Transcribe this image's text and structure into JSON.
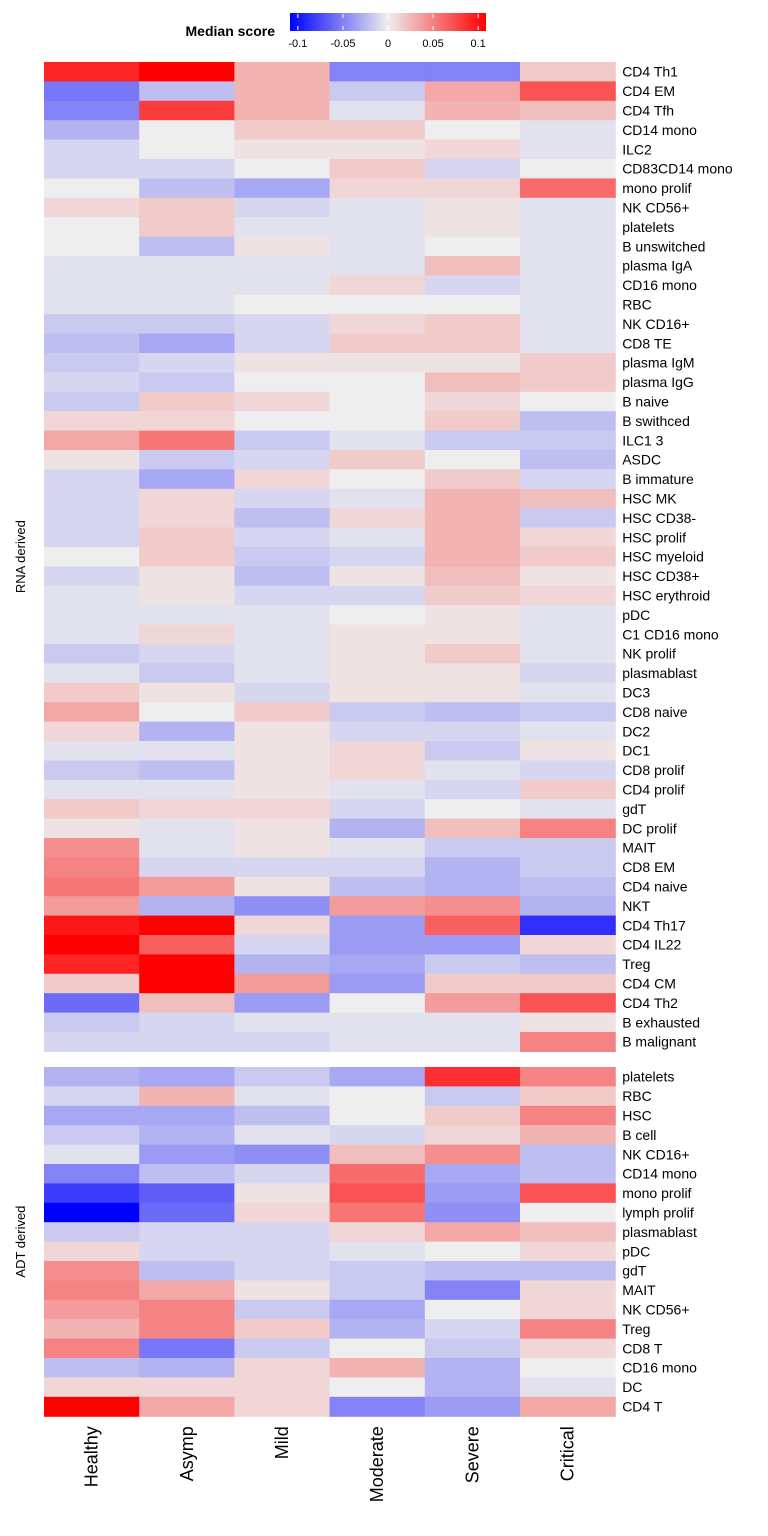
{
  "chart_data": {
    "type": "heatmap",
    "legend": {
      "title": "Median score",
      "ticks": [
        "-0.1",
        "-0.05",
        "0",
        "0.05",
        "0.1"
      ],
      "tick_values": [
        -0.1,
        -0.05,
        0,
        0.05,
        0.1
      ],
      "color_low": "#0000ff",
      "color_mid": "#eeeeee",
      "color_high": "#ff0000",
      "placement": "top"
    },
    "columns": [
      "Healthy",
      "Asymp",
      "Mild",
      "Moderate",
      "Severe",
      "Critical"
    ],
    "groups": [
      {
        "label": "RNA derived",
        "rows": [
          {
            "name": "CD4 Th1",
            "values": [
              0.085,
              0.12,
              0.025,
              -0.045,
              -0.045,
              0.015
            ]
          },
          {
            "name": "CD4 EM",
            "values": [
              -0.05,
              -0.02,
              0.025,
              -0.015,
              0.03,
              0.065
            ]
          },
          {
            "name": "CD4 Tfh",
            "values": [
              -0.045,
              0.075,
              0.025,
              -0.005,
              0.025,
              0.02
            ]
          },
          {
            "name": "CD14 mono",
            "values": [
              -0.025,
              0.0,
              0.015,
              0.015,
              0.0,
              -0.005
            ]
          },
          {
            "name": "ILC2",
            "values": [
              -0.01,
              0.0,
              0.005,
              0.005,
              0.01,
              -0.005
            ]
          },
          {
            "name": "CD83CD14 mono",
            "values": [
              -0.01,
              -0.01,
              0.0,
              0.015,
              -0.01,
              0.0
            ]
          },
          {
            "name": "mono prolif",
            "values": [
              0.0,
              -0.02,
              -0.03,
              0.01,
              0.01,
              0.055
            ]
          },
          {
            "name": "NK CD56+",
            "values": [
              0.01,
              0.015,
              -0.01,
              -0.005,
              0.005,
              -0.005
            ]
          },
          {
            "name": "platelets",
            "values": [
              0.0,
              0.015,
              -0.005,
              -0.005,
              0.005,
              -0.005
            ]
          },
          {
            "name": "B unswitched",
            "values": [
              0.0,
              -0.02,
              0.005,
              -0.005,
              0.0,
              -0.005
            ]
          },
          {
            "name": "plasma IgA",
            "values": [
              -0.005,
              -0.005,
              -0.005,
              -0.005,
              0.02,
              -0.005
            ]
          },
          {
            "name": "CD16 mono",
            "values": [
              -0.005,
              -0.005,
              -0.005,
              0.01,
              -0.01,
              -0.005
            ]
          },
          {
            "name": "RBC",
            "values": [
              -0.005,
              -0.005,
              0.0,
              0.0,
              0.0,
              -0.005
            ]
          },
          {
            "name": "NK CD16+",
            "values": [
              -0.015,
              -0.015,
              -0.01,
              0.01,
              0.015,
              -0.005
            ]
          },
          {
            "name": "CD8 TE",
            "values": [
              -0.02,
              -0.03,
              -0.01,
              0.015,
              0.015,
              -0.005
            ]
          },
          {
            "name": "plasma IgM",
            "values": [
              -0.015,
              -0.01,
              0.005,
              0.005,
              0.005,
              0.015
            ]
          },
          {
            "name": "plasma IgG",
            "values": [
              -0.01,
              -0.015,
              0.0,
              0.0,
              0.02,
              0.015
            ]
          },
          {
            "name": "B naive",
            "values": [
              -0.015,
              0.015,
              0.01,
              0.0,
              0.01,
              0.0
            ]
          },
          {
            "name": "B swithced",
            "values": [
              0.01,
              0.01,
              0.0,
              0.0,
              0.015,
              -0.02
            ]
          },
          {
            "name": "ILC1 3",
            "values": [
              0.03,
              0.05,
              -0.015,
              -0.005,
              -0.015,
              -0.015
            ]
          },
          {
            "name": "ASDC",
            "values": [
              0.005,
              -0.015,
              -0.01,
              0.015,
              0.0,
              -0.02
            ]
          },
          {
            "name": "B immature",
            "values": [
              -0.01,
              -0.03,
              0.01,
              0.0,
              0.015,
              -0.01
            ]
          },
          {
            "name": "HSC MK",
            "values": [
              -0.01,
              0.01,
              -0.01,
              -0.005,
              0.025,
              0.02
            ]
          },
          {
            "name": "HSC CD38-",
            "values": [
              -0.01,
              0.01,
              -0.02,
              0.01,
              0.025,
              -0.015
            ]
          },
          {
            "name": "HSC prolif",
            "values": [
              -0.01,
              0.015,
              -0.01,
              -0.005,
              0.025,
              0.01
            ]
          },
          {
            "name": "HSC myeloid",
            "values": [
              0.0,
              0.015,
              -0.015,
              -0.01,
              0.025,
              0.015
            ]
          },
          {
            "name": "HSC CD38+",
            "values": [
              -0.01,
              0.005,
              -0.02,
              0.005,
              0.02,
              0.005
            ]
          },
          {
            "name": "HSC erythroid",
            "values": [
              -0.005,
              0.005,
              -0.01,
              -0.01,
              0.015,
              0.01
            ]
          },
          {
            "name": "pDC",
            "values": [
              -0.005,
              -0.005,
              -0.005,
              0.0,
              0.005,
              -0.005
            ]
          },
          {
            "name": "C1 CD16 mono",
            "values": [
              -0.005,
              0.01,
              -0.005,
              0.005,
              0.005,
              -0.005
            ]
          },
          {
            "name": "NK prolif",
            "values": [
              -0.015,
              -0.01,
              -0.005,
              0.005,
              0.015,
              -0.005
            ]
          },
          {
            "name": "plasmablast",
            "values": [
              -0.005,
              -0.015,
              -0.005,
              0.005,
              0.005,
              -0.01
            ]
          },
          {
            "name": "DC3",
            "values": [
              0.015,
              0.005,
              -0.01,
              0.005,
              0.005,
              -0.005
            ]
          },
          {
            "name": "CD8 naive",
            "values": [
              0.03,
              0.0,
              0.015,
              -0.015,
              -0.02,
              -0.015
            ]
          },
          {
            "name": "DC2",
            "values": [
              0.01,
              -0.025,
              0.005,
              -0.01,
              -0.01,
              -0.005
            ]
          },
          {
            "name": "DC1",
            "values": [
              -0.005,
              -0.005,
              0.005,
              0.01,
              -0.015,
              0.005
            ]
          },
          {
            "name": "CD8 prolif",
            "values": [
              -0.015,
              -0.02,
              0.005,
              0.01,
              -0.005,
              -0.01
            ]
          },
          {
            "name": "CD4 prolif",
            "values": [
              -0.005,
              -0.005,
              0.005,
              -0.005,
              -0.01,
              0.015
            ]
          },
          {
            "name": "gdT",
            "values": [
              0.015,
              0.01,
              0.01,
              -0.01,
              0.0,
              -0.005
            ]
          },
          {
            "name": "DC prolif",
            "values": [
              0.005,
              -0.005,
              0.005,
              -0.025,
              0.02,
              0.045
            ]
          },
          {
            "name": "MAIT",
            "values": [
              0.04,
              -0.005,
              0.005,
              -0.005,
              -0.015,
              -0.015
            ]
          },
          {
            "name": "CD8 EM",
            "values": [
              0.045,
              -0.01,
              -0.01,
              -0.01,
              -0.025,
              -0.015
            ]
          },
          {
            "name": "CD4 naive",
            "values": [
              0.05,
              0.035,
              0.005,
              -0.02,
              -0.025,
              -0.02
            ]
          },
          {
            "name": "NKT",
            "values": [
              0.035,
              -0.025,
              -0.04,
              0.035,
              0.04,
              -0.025
            ]
          },
          {
            "name": "CD4 Th17",
            "values": [
              0.09,
              0.12,
              0.01,
              -0.035,
              0.06,
              -0.08
            ]
          },
          {
            "name": "CD4 IL22",
            "values": [
              0.105,
              0.06,
              -0.01,
              -0.035,
              -0.035,
              0.01
            ]
          },
          {
            "name": "Treg",
            "values": [
              0.085,
              0.12,
              -0.025,
              -0.03,
              -0.015,
              -0.02
            ]
          },
          {
            "name": "CD4 CM",
            "values": [
              0.015,
              0.12,
              0.035,
              -0.035,
              0.015,
              0.015
            ]
          },
          {
            "name": "CD4 Th2",
            "values": [
              -0.055,
              0.02,
              -0.035,
              0.0,
              0.035,
              0.065
            ]
          },
          {
            "name": "B exhausted",
            "values": [
              -0.015,
              -0.01,
              -0.005,
              -0.005,
              -0.005,
              0.005
            ]
          },
          {
            "name": "B malignant",
            "values": [
              -0.01,
              -0.01,
              -0.01,
              -0.005,
              -0.005,
              0.045
            ]
          }
        ]
      },
      {
        "label": "ADT derived",
        "rows": [
          {
            "name": "platelets",
            "values": [
              -0.025,
              -0.03,
              -0.015,
              -0.03,
              0.08,
              0.045
            ]
          },
          {
            "name": "RBC",
            "values": [
              -0.01,
              0.025,
              -0.005,
              0.0,
              -0.015,
              0.015
            ]
          },
          {
            "name": "HSC",
            "values": [
              -0.03,
              -0.03,
              -0.02,
              0.0,
              0.015,
              0.045
            ]
          },
          {
            "name": "B cell",
            "values": [
              -0.015,
              -0.025,
              -0.005,
              -0.01,
              0.01,
              0.025
            ]
          },
          {
            "name": "NK CD16+",
            "values": [
              -0.005,
              -0.035,
              -0.04,
              0.02,
              0.04,
              -0.02
            ]
          },
          {
            "name": "CD14 mono",
            "values": [
              -0.045,
              -0.02,
              -0.01,
              0.055,
              -0.03,
              -0.02
            ]
          },
          {
            "name": "mono prolif",
            "values": [
              -0.075,
              -0.06,
              0.005,
              0.065,
              -0.035,
              0.065
            ]
          },
          {
            "name": "lymph prolif",
            "values": [
              -0.12,
              -0.055,
              0.01,
              0.05,
              -0.04,
              0.0
            ]
          },
          {
            "name": "plasmablast",
            "values": [
              -0.015,
              -0.01,
              -0.01,
              0.01,
              0.03,
              0.02
            ]
          },
          {
            "name": "pDC",
            "values": [
              0.01,
              -0.01,
              -0.01,
              -0.005,
              0.0,
              0.01
            ]
          },
          {
            "name": "gdT",
            "values": [
              0.04,
              -0.02,
              -0.01,
              -0.015,
              -0.02,
              -0.02
            ]
          },
          {
            "name": "MAIT",
            "values": [
              0.045,
              0.03,
              0.005,
              -0.015,
              -0.045,
              0.01
            ]
          },
          {
            "name": "NK CD56+",
            "values": [
              0.035,
              0.045,
              -0.015,
              -0.03,
              0.0,
              0.01
            ]
          },
          {
            "name": "Treg",
            "values": [
              0.025,
              0.045,
              0.015,
              -0.025,
              -0.01,
              0.045
            ]
          },
          {
            "name": "CD8 T",
            "values": [
              0.045,
              -0.05,
              -0.015,
              0.0,
              -0.015,
              0.01
            ]
          },
          {
            "name": "CD16 mono",
            "values": [
              -0.02,
              -0.025,
              0.01,
              0.025,
              -0.025,
              0.0
            ]
          },
          {
            "name": "DC",
            "values": [
              0.01,
              0.01,
              0.01,
              0.0,
              -0.025,
              -0.005
            ]
          },
          {
            "name": "CD4 T",
            "values": [
              0.12,
              0.03,
              0.01,
              -0.045,
              -0.035,
              0.03
            ]
          }
        ]
      }
    ]
  }
}
